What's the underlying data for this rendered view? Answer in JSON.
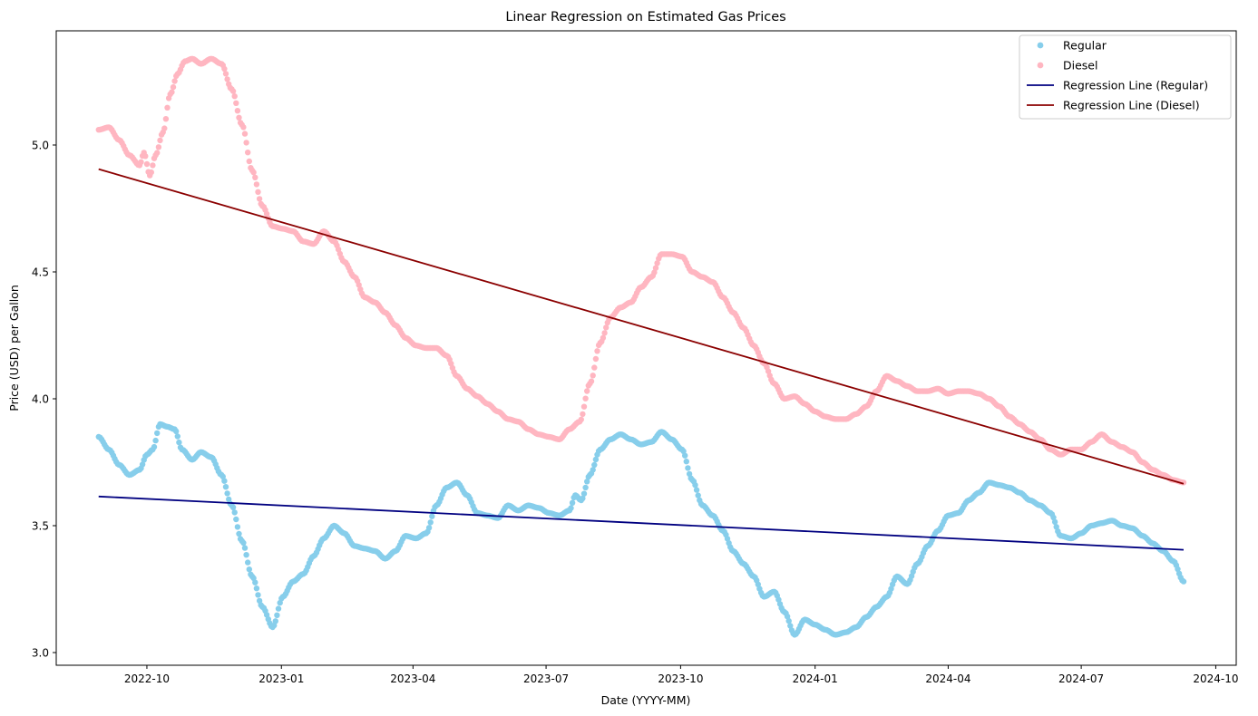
{
  "chart_data": {
    "type": "scatter",
    "title": "Linear Regression on Estimated Gas Prices",
    "xlabel": "Date (YYYY-MM)",
    "ylabel": "Price (USD) per Gallon",
    "xlim": [
      "2022-07-31",
      "2024-10-15"
    ],
    "ylim": [
      2.95,
      5.45
    ],
    "x_ticks": [
      "2022-10",
      "2023-01",
      "2023-04",
      "2023-07",
      "2023-10",
      "2024-01",
      "2024-04",
      "2024-07",
      "2024-10"
    ],
    "y_ticks": [
      "3.0",
      "3.5",
      "4.0",
      "4.5",
      "5.0"
    ],
    "grid": false,
    "legend": "top-right",
    "series": [
      {
        "name": "Regular",
        "kind": "scatter",
        "color": "#87CEEB",
        "points": [
          [
            "2022-08-29",
            3.85
          ],
          [
            "2022-09-05",
            3.8
          ],
          [
            "2022-09-12",
            3.74
          ],
          [
            "2022-09-19",
            3.7
          ],
          [
            "2022-09-26",
            3.72
          ],
          [
            "2022-10-01",
            3.78
          ],
          [
            "2022-10-05",
            3.8
          ],
          [
            "2022-10-10",
            3.9
          ],
          [
            "2022-10-15",
            3.89
          ],
          [
            "2022-10-20",
            3.88
          ],
          [
            "2022-10-25",
            3.8
          ],
          [
            "2022-11-01",
            3.76
          ],
          [
            "2022-11-07",
            3.79
          ],
          [
            "2022-11-14",
            3.77
          ],
          [
            "2022-11-21",
            3.7
          ],
          [
            "2022-11-28",
            3.58
          ],
          [
            "2022-12-05",
            3.44
          ],
          [
            "2022-12-12",
            3.3
          ],
          [
            "2022-12-19",
            3.18
          ],
          [
            "2022-12-26",
            3.1
          ],
          [
            "2023-01-02",
            3.22
          ],
          [
            "2023-01-09",
            3.28
          ],
          [
            "2023-01-16",
            3.31
          ],
          [
            "2023-01-23",
            3.38
          ],
          [
            "2023-01-30",
            3.45
          ],
          [
            "2023-02-06",
            3.5
          ],
          [
            "2023-02-13",
            3.47
          ],
          [
            "2023-02-20",
            3.42
          ],
          [
            "2023-02-27",
            3.41
          ],
          [
            "2023-03-06",
            3.4
          ],
          [
            "2023-03-13",
            3.37
          ],
          [
            "2023-03-20",
            3.4
          ],
          [
            "2023-03-27",
            3.46
          ],
          [
            "2023-04-03",
            3.45
          ],
          [
            "2023-04-10",
            3.47
          ],
          [
            "2023-04-17",
            3.58
          ],
          [
            "2023-04-24",
            3.65
          ],
          [
            "2023-05-01",
            3.67
          ],
          [
            "2023-05-08",
            3.62
          ],
          [
            "2023-05-15",
            3.55
          ],
          [
            "2023-05-22",
            3.54
          ],
          [
            "2023-05-29",
            3.53
          ],
          [
            "2023-06-05",
            3.58
          ],
          [
            "2023-06-12",
            3.56
          ],
          [
            "2023-06-19",
            3.58
          ],
          [
            "2023-06-26",
            3.57
          ],
          [
            "2023-07-03",
            3.55
          ],
          [
            "2023-07-10",
            3.54
          ],
          [
            "2023-07-17",
            3.56
          ],
          [
            "2023-07-21",
            3.62
          ],
          [
            "2023-07-25",
            3.6
          ],
          [
            "2023-07-31",
            3.7
          ],
          [
            "2023-08-07",
            3.8
          ],
          [
            "2023-08-14",
            3.84
          ],
          [
            "2023-08-21",
            3.86
          ],
          [
            "2023-08-28",
            3.84
          ],
          [
            "2023-09-04",
            3.82
          ],
          [
            "2023-09-11",
            3.83
          ],
          [
            "2023-09-18",
            3.87
          ],
          [
            "2023-09-25",
            3.84
          ],
          [
            "2023-10-02",
            3.8
          ],
          [
            "2023-10-09",
            3.68
          ],
          [
            "2023-10-16",
            3.58
          ],
          [
            "2023-10-23",
            3.54
          ],
          [
            "2023-10-30",
            3.48
          ],
          [
            "2023-11-06",
            3.4
          ],
          [
            "2023-11-13",
            3.35
          ],
          [
            "2023-11-20",
            3.3
          ],
          [
            "2023-11-27",
            3.22
          ],
          [
            "2023-12-04",
            3.24
          ],
          [
            "2023-12-11",
            3.16
          ],
          [
            "2023-12-18",
            3.07
          ],
          [
            "2023-12-25",
            3.13
          ],
          [
            "2024-01-01",
            3.11
          ],
          [
            "2024-01-08",
            3.09
          ],
          [
            "2024-01-15",
            3.07
          ],
          [
            "2024-01-22",
            3.08
          ],
          [
            "2024-01-29",
            3.1
          ],
          [
            "2024-02-05",
            3.14
          ],
          [
            "2024-02-12",
            3.18
          ],
          [
            "2024-02-19",
            3.22
          ],
          [
            "2024-02-26",
            3.3
          ],
          [
            "2024-03-04",
            3.27
          ],
          [
            "2024-03-11",
            3.35
          ],
          [
            "2024-03-18",
            3.42
          ],
          [
            "2024-03-25",
            3.48
          ],
          [
            "2024-04-01",
            3.54
          ],
          [
            "2024-04-08",
            3.55
          ],
          [
            "2024-04-15",
            3.6
          ],
          [
            "2024-04-22",
            3.63
          ],
          [
            "2024-04-29",
            3.67
          ],
          [
            "2024-05-06",
            3.66
          ],
          [
            "2024-05-13",
            3.65
          ],
          [
            "2024-05-20",
            3.63
          ],
          [
            "2024-05-27",
            3.6
          ],
          [
            "2024-06-03",
            3.58
          ],
          [
            "2024-06-10",
            3.55
          ],
          [
            "2024-06-17",
            3.46
          ],
          [
            "2024-06-24",
            3.45
          ],
          [
            "2024-07-01",
            3.47
          ],
          [
            "2024-07-08",
            3.5
          ],
          [
            "2024-07-15",
            3.51
          ],
          [
            "2024-07-22",
            3.52
          ],
          [
            "2024-07-29",
            3.5
          ],
          [
            "2024-08-05",
            3.49
          ],
          [
            "2024-08-12",
            3.46
          ],
          [
            "2024-08-19",
            3.43
          ],
          [
            "2024-08-26",
            3.4
          ],
          [
            "2024-09-02",
            3.36
          ],
          [
            "2024-09-09",
            3.28
          ]
        ]
      },
      {
        "name": "Diesel",
        "kind": "scatter",
        "color": "#FFB6C1",
        "points": [
          [
            "2022-08-29",
            5.06
          ],
          [
            "2022-09-05",
            5.07
          ],
          [
            "2022-09-12",
            5.02
          ],
          [
            "2022-09-19",
            4.96
          ],
          [
            "2022-09-26",
            4.92
          ],
          [
            "2022-09-29",
            4.97
          ],
          [
            "2022-10-03",
            4.88
          ],
          [
            "2022-10-07",
            4.96
          ],
          [
            "2022-10-12",
            5.05
          ],
          [
            "2022-10-17",
            5.2
          ],
          [
            "2022-10-22",
            5.28
          ],
          [
            "2022-10-27",
            5.33
          ],
          [
            "2022-11-01",
            5.34
          ],
          [
            "2022-11-07",
            5.32
          ],
          [
            "2022-11-14",
            5.34
          ],
          [
            "2022-11-21",
            5.32
          ],
          [
            "2022-11-28",
            5.22
          ],
          [
            "2022-12-05",
            5.08
          ],
          [
            "2022-12-12",
            4.9
          ],
          [
            "2022-12-19",
            4.76
          ],
          [
            "2022-12-26",
            4.68
          ],
          [
            "2023-01-02",
            4.67
          ],
          [
            "2023-01-09",
            4.66
          ],
          [
            "2023-01-16",
            4.62
          ],
          [
            "2023-01-23",
            4.61
          ],
          [
            "2023-01-30",
            4.66
          ],
          [
            "2023-02-06",
            4.62
          ],
          [
            "2023-02-13",
            4.54
          ],
          [
            "2023-02-20",
            4.48
          ],
          [
            "2023-02-27",
            4.4
          ],
          [
            "2023-03-06",
            4.38
          ],
          [
            "2023-03-13",
            4.34
          ],
          [
            "2023-03-20",
            4.29
          ],
          [
            "2023-03-27",
            4.24
          ],
          [
            "2023-04-03",
            4.21
          ],
          [
            "2023-04-10",
            4.2
          ],
          [
            "2023-04-17",
            4.2
          ],
          [
            "2023-04-24",
            4.17
          ],
          [
            "2023-05-01",
            4.09
          ],
          [
            "2023-05-08",
            4.04
          ],
          [
            "2023-05-15",
            4.01
          ],
          [
            "2023-05-22",
            3.98
          ],
          [
            "2023-05-29",
            3.95
          ],
          [
            "2023-06-05",
            3.92
          ],
          [
            "2023-06-12",
            3.91
          ],
          [
            "2023-06-19",
            3.88
          ],
          [
            "2023-06-26",
            3.86
          ],
          [
            "2023-07-03",
            3.85
          ],
          [
            "2023-07-10",
            3.84
          ],
          [
            "2023-07-17",
            3.88
          ],
          [
            "2023-07-24",
            3.91
          ],
          [
            "2023-07-31",
            4.06
          ],
          [
            "2023-08-07",
            4.22
          ],
          [
            "2023-08-14",
            4.32
          ],
          [
            "2023-08-21",
            4.36
          ],
          [
            "2023-08-28",
            4.38
          ],
          [
            "2023-09-04",
            4.44
          ],
          [
            "2023-09-11",
            4.48
          ],
          [
            "2023-09-18",
            4.57
          ],
          [
            "2023-09-25",
            4.57
          ],
          [
            "2023-10-02",
            4.56
          ],
          [
            "2023-10-09",
            4.5
          ],
          [
            "2023-10-16",
            4.48
          ],
          [
            "2023-10-23",
            4.46
          ],
          [
            "2023-10-30",
            4.4
          ],
          [
            "2023-11-06",
            4.34
          ],
          [
            "2023-11-13",
            4.28
          ],
          [
            "2023-11-20",
            4.21
          ],
          [
            "2023-11-27",
            4.14
          ],
          [
            "2023-12-04",
            4.06
          ],
          [
            "2023-12-11",
            4.0
          ],
          [
            "2023-12-18",
            4.01
          ],
          [
            "2023-12-25",
            3.98
          ],
          [
            "2024-01-01",
            3.95
          ],
          [
            "2024-01-08",
            3.93
          ],
          [
            "2024-01-15",
            3.92
          ],
          [
            "2024-01-22",
            3.92
          ],
          [
            "2024-01-29",
            3.94
          ],
          [
            "2024-02-05",
            3.97
          ],
          [
            "2024-02-12",
            4.03
          ],
          [
            "2024-02-19",
            4.09
          ],
          [
            "2024-02-26",
            4.07
          ],
          [
            "2024-03-04",
            4.05
          ],
          [
            "2024-03-11",
            4.03
          ],
          [
            "2024-03-18",
            4.03
          ],
          [
            "2024-03-25",
            4.04
          ],
          [
            "2024-04-01",
            4.02
          ],
          [
            "2024-04-08",
            4.03
          ],
          [
            "2024-04-15",
            4.03
          ],
          [
            "2024-04-22",
            4.02
          ],
          [
            "2024-04-29",
            4.0
          ],
          [
            "2024-05-06",
            3.97
          ],
          [
            "2024-05-13",
            3.93
          ],
          [
            "2024-05-20",
            3.9
          ],
          [
            "2024-05-27",
            3.87
          ],
          [
            "2024-06-03",
            3.84
          ],
          [
            "2024-06-10",
            3.8
          ],
          [
            "2024-06-17",
            3.78
          ],
          [
            "2024-06-24",
            3.8
          ],
          [
            "2024-07-01",
            3.8
          ],
          [
            "2024-07-08",
            3.83
          ],
          [
            "2024-07-15",
            3.86
          ],
          [
            "2024-07-22",
            3.83
          ],
          [
            "2024-07-29",
            3.81
          ],
          [
            "2024-08-05",
            3.79
          ],
          [
            "2024-08-12",
            3.75
          ],
          [
            "2024-08-19",
            3.72
          ],
          [
            "2024-08-26",
            3.7
          ],
          [
            "2024-09-02",
            3.68
          ],
          [
            "2024-09-09",
            3.67
          ]
        ]
      },
      {
        "name": "Regression Line (Regular)",
        "kind": "line",
        "color": "#000080",
        "points": [
          [
            "2022-08-29",
            3.615
          ],
          [
            "2024-09-09",
            3.405
          ]
        ]
      },
      {
        "name": "Regression Line (Diesel)",
        "kind": "line",
        "color": "#8B0000",
        "points": [
          [
            "2022-08-29",
            4.905
          ],
          [
            "2024-09-09",
            3.665
          ]
        ]
      }
    ]
  }
}
